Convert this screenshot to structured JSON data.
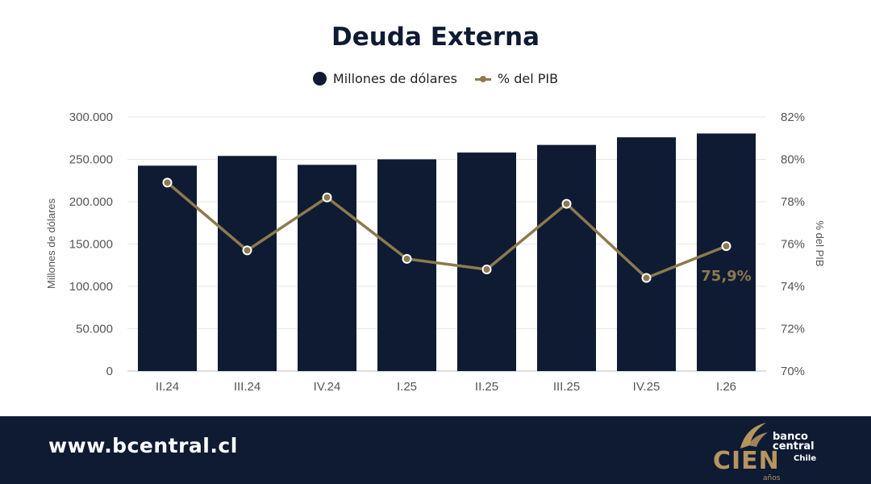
{
  "colors": {
    "bar": "#0e1b33",
    "line": "#8c7a4e",
    "footer_bg": "#0e1b33",
    "gold": "#b7955f",
    "grid": "#e6e6e6",
    "axis_text": "#555555"
  },
  "footer": {
    "url": "www.bcentral.cl"
  },
  "logo": {
    "line1": "banco",
    "line2": "central",
    "line3": "Chile",
    "cien": "CIEN",
    "anos": "años"
  },
  "chart_data": {
    "type": "bar",
    "title": "Deuda Externa",
    "categories": [
      "II.24",
      "III.24",
      "IV.24",
      "I.25",
      "II.25",
      "III.25",
      "IV.25",
      "I.26"
    ],
    "series": [
      {
        "name": "Millones de dólares",
        "type": "bar",
        "axis": "left",
        "values": [
          242500,
          254000,
          243500,
          250000,
          258000,
          267000,
          276000,
          280500
        ]
      },
      {
        "name": "% del PIB",
        "type": "line",
        "axis": "right",
        "values": [
          78.9,
          75.7,
          78.2,
          75.3,
          74.8,
          77.9,
          74.4,
          75.9
        ]
      }
    ],
    "ylabel": "Millones de dólares",
    "ylabel_right": "% del PIB",
    "ylim": [
      0,
      300000
    ],
    "ylim_right": [
      70,
      82
    ],
    "yticks": [
      "0",
      "50.000",
      "100.000",
      "150.000",
      "200.000",
      "250.000",
      "300.000"
    ],
    "yticks_right": [
      "70%",
      "72%",
      "74%",
      "76%",
      "78%",
      "80%",
      "82%"
    ],
    "annotations": [
      {
        "series": "% del PIB",
        "category": "I.26",
        "text": "75,9%"
      }
    ],
    "grid": true,
    "legend_position": "top-center"
  }
}
